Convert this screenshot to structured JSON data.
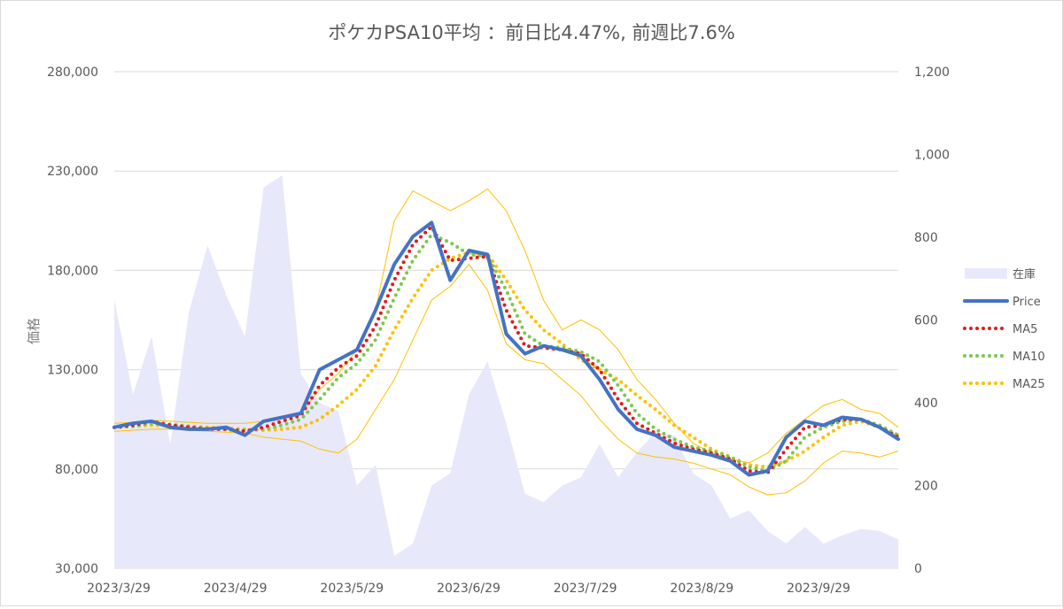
{
  "chart_data": {
    "type": "line",
    "title": "ポケカPSA10平均 ：前日比4.47%, 前週比7.6%",
    "ylabel": "価格",
    "y_left": {
      "min": 30000,
      "max": 280000,
      "ticks": [
        "280,000",
        "230,000",
        "180,000",
        "130,000",
        "80,000",
        "30,000"
      ]
    },
    "y_right": {
      "min": 0,
      "max": 1200,
      "ticks": [
        "1,200",
        "1,000",
        "800",
        "600",
        "400",
        "200",
        "0"
      ]
    },
    "x_ticks": [
      "2023/3/29",
      "2023/4/29",
      "2023/5/29",
      "2023/6/29",
      "2023/7/29",
      "2023/8/29",
      "2023/9/29"
    ],
    "grid": "horizontal",
    "legend_position": "right",
    "legend": [
      "在庫",
      "Price",
      "MA5",
      "MA10",
      "MA25"
    ],
    "colors": {
      "inventory": "#e8e8fb",
      "price": "#4472c4",
      "ma5": "#e31a1c",
      "ma10": "#7bc84f",
      "ma25": "#ffc000",
      "band": "#ffc000"
    },
    "x": [
      0,
      5,
      10,
      15,
      20,
      25,
      30,
      35,
      40,
      45,
      50,
      55,
      60,
      65,
      70,
      75,
      80,
      85,
      90,
      95,
      100,
      105,
      110,
      115,
      120,
      125,
      130,
      135,
      140,
      145,
      150,
      155,
      160,
      165,
      170,
      175,
      180,
      185,
      190,
      195,
      200,
      205,
      210
    ],
    "series": [
      {
        "name": "Price",
        "axis": "left",
        "values": [
          101000,
          103000,
          104000,
          101000,
          100000,
          100000,
          101000,
          97000,
          104000,
          106000,
          108000,
          130000,
          135000,
          140000,
          160000,
          183000,
          197000,
          204000,
          175000,
          190000,
          188000,
          148000,
          138000,
          142000,
          140000,
          137000,
          125000,
          110000,
          100000,
          97000,
          91000,
          89000,
          87000,
          84000,
          77000,
          79000,
          96000,
          104000,
          102000,
          106000,
          105000,
          101000,
          95000
        ]
      },
      {
        "name": "MA5",
        "axis": "left",
        "values": [
          101000,
          102000,
          104000,
          102000,
          101000,
          100000,
          100000,
          99000,
          101000,
          104000,
          107000,
          122000,
          131000,
          137000,
          152000,
          175000,
          193000,
          202000,
          185000,
          186000,
          187000,
          160000,
          142000,
          141000,
          140000,
          138000,
          130000,
          115000,
          103000,
          98000,
          93000,
          90000,
          88000,
          85000,
          79000,
          78000,
          90000,
          101000,
          102000,
          105000,
          105000,
          101000,
          96000
        ]
      },
      {
        "name": "MA10",
        "axis": "left",
        "values": [
          101000,
          101500,
          103000,
          102500,
          101500,
          100500,
          100000,
          99500,
          100000,
          102000,
          105000,
          115000,
          126000,
          133000,
          145000,
          166000,
          185000,
          198000,
          194000,
          188000,
          187000,
          170000,
          148000,
          142000,
          141000,
          139000,
          134000,
          122000,
          108000,
          100000,
          95000,
          91000,
          89000,
          86000,
          81000,
          79000,
          84000,
          96000,
          101000,
          104000,
          105000,
          102000,
          97000
        ]
      },
      {
        "name": "MA25",
        "axis": "left",
        "values": [
          101000,
          101500,
          102000,
          102000,
          101500,
          101000,
          100500,
          100000,
          99500,
          100000,
          101000,
          105000,
          112000,
          120000,
          132000,
          150000,
          166000,
          180000,
          186000,
          189000,
          188000,
          175000,
          160000,
          150000,
          143000,
          135000,
          130000,
          125000,
          117000,
          110000,
          102000,
          96000,
          90000,
          86000,
          82000,
          81000,
          84000,
          89000,
          96000,
          102000,
          104000,
          101000,
          97000
        ]
      },
      {
        "name": "upper band",
        "axis": "left",
        "values": [
          103000,
          103500,
          104500,
          104000,
          103500,
          103000,
          103000,
          103000,
          104000,
          106000,
          108000,
          120000,
          128000,
          140000,
          160000,
          205000,
          220000,
          215000,
          210000,
          215000,
          221000,
          210000,
          190000,
          165000,
          150000,
          155000,
          150000,
          140000,
          125000,
          115000,
          103000,
          93000,
          88000,
          85000,
          83000,
          88000,
          98000,
          105000,
          112000,
          115000,
          110000,
          108000,
          101000
        ]
      },
      {
        "name": "lower band",
        "axis": "left",
        "values": [
          99000,
          99500,
          100000,
          100000,
          99500,
          99000,
          98500,
          98000,
          96000,
          95000,
          94000,
          90000,
          88000,
          95000,
          110000,
          125000,
          145000,
          165000,
          172000,
          183000,
          170000,
          143000,
          135000,
          133000,
          125000,
          117000,
          105000,
          95000,
          88000,
          86000,
          85000,
          83000,
          80000,
          77000,
          71000,
          67000,
          68000,
          74000,
          83000,
          89000,
          88000,
          86000,
          89000
        ]
      },
      {
        "name": "在庫",
        "axis": "right",
        "values": [
          650,
          420,
          560,
          300,
          620,
          780,
          660,
          560,
          920,
          950,
          470,
          400,
          380,
          200,
          250,
          30,
          60,
          200,
          230,
          420,
          500,
          350,
          180,
          160,
          200,
          220,
          300,
          220,
          280,
          330,
          320,
          230,
          200,
          120,
          140,
          90,
          60,
          100,
          60,
          80,
          95,
          90,
          70
        ]
      }
    ]
  }
}
